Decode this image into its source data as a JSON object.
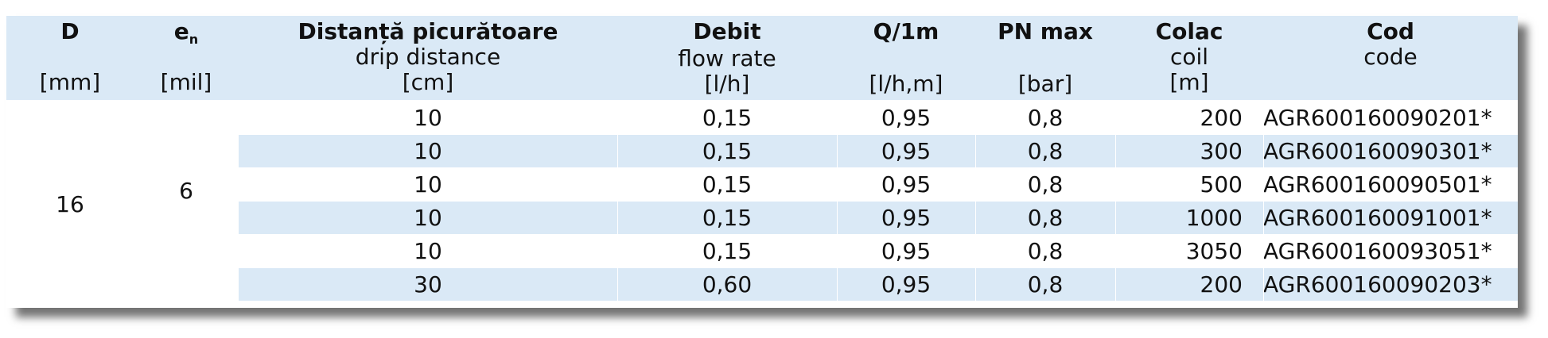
{
  "headers": [
    {
      "title": "D",
      "sub": "",
      "unit": "[mm]"
    },
    {
      "title": "e",
      "title_sub": "n",
      "sub": "",
      "unit": "[mil]"
    },
    {
      "title": "Distanță picurătoare",
      "sub": "drip distance",
      "unit": "[cm]"
    },
    {
      "title": "Debit",
      "sub": "flow rate",
      "unit": "[l/h]"
    },
    {
      "title": "Q/1m",
      "sub": "",
      "unit": "[l/h,m]"
    },
    {
      "title": "PN max",
      "sub": "",
      "unit": "[bar]"
    },
    {
      "title": "Colac",
      "sub": "coil",
      "unit": "[m]"
    },
    {
      "title": "Cod",
      "sub": "code",
      "unit": ""
    }
  ],
  "merged": {
    "D": "16",
    "en": "6"
  },
  "rows": [
    {
      "distance": "10",
      "debit": "0,15",
      "q": "0,95",
      "pn": "0,8",
      "coil": "200",
      "code": "AGR600160090201*"
    },
    {
      "distance": "10",
      "debit": "0,15",
      "q": "0,95",
      "pn": "0,8",
      "coil": "300",
      "code": "AGR600160090301*"
    },
    {
      "distance": "10",
      "debit": "0,15",
      "q": "0,95",
      "pn": "0,8",
      "coil": "500",
      "code": "AGR600160090501*"
    },
    {
      "distance": "10",
      "debit": "0,15",
      "q": "0,95",
      "pn": "0,8",
      "coil": "1000",
      "code": "AGR600160091001*"
    },
    {
      "distance": "10",
      "debit": "0,15",
      "q": "0,95",
      "pn": "0,8",
      "coil": "3050",
      "code": "AGR600160093051*"
    },
    {
      "distance": "30",
      "debit": "0,60",
      "q": "0,95",
      "pn": "0,8",
      "coil": "200",
      "code": "AGR600160090203*"
    }
  ]
}
